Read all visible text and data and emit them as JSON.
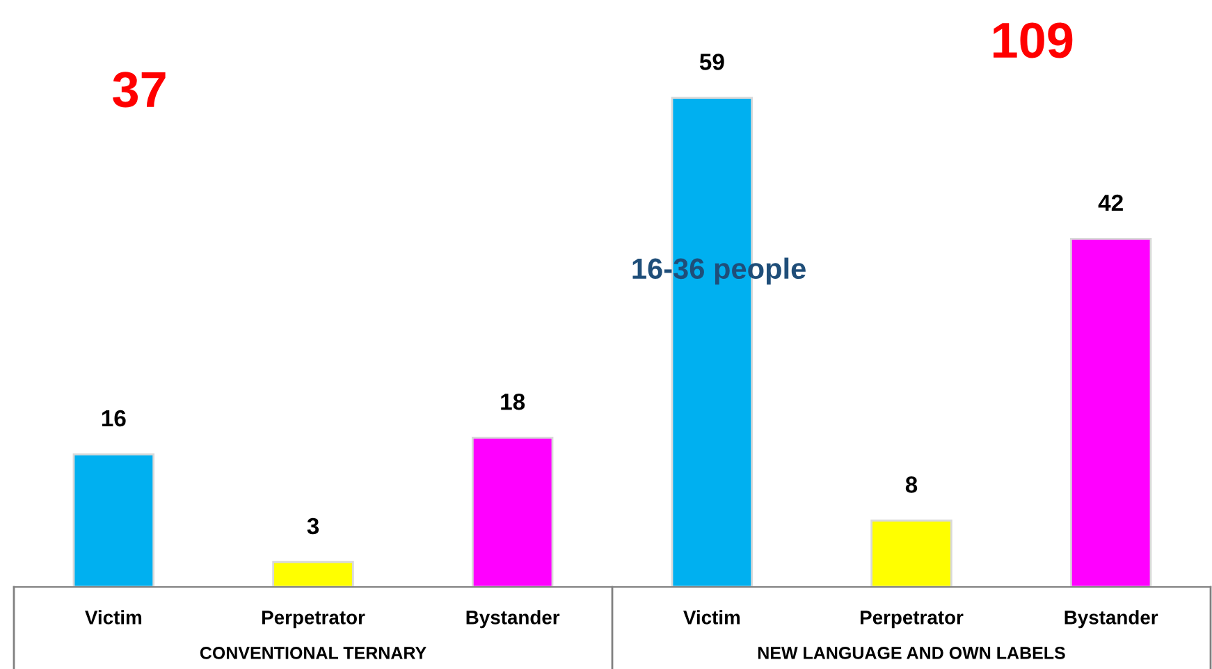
{
  "chart_data": {
    "type": "bar",
    "categories": [
      "Victim",
      "Perpetrator",
      "Bystander",
      "Victim",
      "Perpetrator",
      "Bystander"
    ],
    "values": [
      16,
      3,
      18,
      59,
      8,
      42
    ],
    "colors": [
      "#00b0f0",
      "#ffff00",
      "#ff00ff",
      "#00b0f0",
      "#ffff00",
      "#ff00ff"
    ],
    "data_labels": true,
    "annotations": [
      "37",
      "109",
      "16-36 people",
      "CONVENTIONAL TERNARY",
      "NEW LANGUAGE AND OWN LABELS"
    ]
  }
}
